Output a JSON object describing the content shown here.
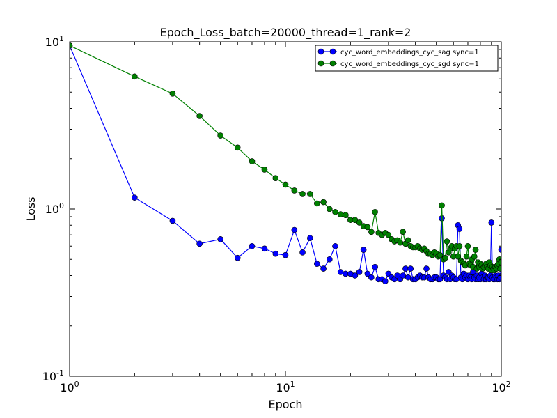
{
  "chart_data": {
    "type": "line",
    "title": "Epoch_Loss_batch=20000_thread=1_rank=2",
    "xlabel": "Epoch",
    "ylabel": "Loss",
    "xscale": "log",
    "yscale": "log",
    "xlim": [
      1,
      100
    ],
    "ylim": [
      0.1,
      10
    ],
    "grid": false,
    "legend_position": "top-right",
    "x_ticks": [
      {
        "value": 1,
        "base": "10",
        "exp": "0"
      },
      {
        "value": 10,
        "base": "10",
        "exp": "1"
      },
      {
        "value": 100,
        "base": "10",
        "exp": "2"
      }
    ],
    "y_ticks": [
      {
        "value": 0.1,
        "base": "10",
        "exp": "-1"
      },
      {
        "value": 1,
        "base": "10",
        "exp": "0"
      },
      {
        "value": 10,
        "base": "10",
        "exp": "1"
      }
    ],
    "series": [
      {
        "name": "cyc_word_embeddings_cyc_sag sync=1",
        "color": "#0000ff",
        "x": [
          1,
          2,
          3,
          4,
          5,
          6,
          7,
          8,
          9,
          10,
          11,
          12,
          13,
          14,
          15,
          16,
          17,
          18,
          19,
          20,
          21,
          22,
          23,
          24,
          25,
          26,
          27,
          28,
          29,
          30,
          31,
          32,
          33,
          34,
          35,
          36,
          37,
          38,
          39,
          40,
          41,
          42,
          43,
          44,
          45,
          46,
          47,
          48,
          49,
          50,
          51,
          52,
          53,
          54,
          55,
          56,
          57,
          58,
          59,
          60,
          61,
          62,
          63,
          64,
          65,
          66,
          67,
          68,
          69,
          70,
          71,
          72,
          73,
          74,
          75,
          76,
          77,
          78,
          79,
          80,
          81,
          82,
          83,
          84,
          85,
          86,
          87,
          88,
          89,
          90,
          91,
          92,
          93,
          94,
          95,
          96,
          97,
          98,
          99,
          100
        ],
        "y": [
          9.5,
          1.17,
          0.85,
          0.62,
          0.66,
          0.51,
          0.6,
          0.58,
          0.54,
          0.53,
          0.75,
          0.55,
          0.67,
          0.47,
          0.44,
          0.5,
          0.6,
          0.42,
          0.41,
          0.41,
          0.4,
          0.42,
          0.57,
          0.41,
          0.39,
          0.45,
          0.38,
          0.38,
          0.37,
          0.41,
          0.39,
          0.38,
          0.4,
          0.38,
          0.4,
          0.44,
          0.39,
          0.44,
          0.38,
          0.38,
          0.39,
          0.4,
          0.39,
          0.39,
          0.44,
          0.39,
          0.38,
          0.38,
          0.39,
          0.39,
          0.38,
          0.38,
          0.88,
          0.4,
          0.39,
          0.38,
          0.42,
          0.38,
          0.4,
          0.39,
          0.38,
          0.38,
          0.8,
          0.76,
          0.39,
          0.38,
          0.41,
          0.39,
          0.4,
          0.38,
          0.4,
          0.39,
          0.38,
          0.42,
          0.39,
          0.38,
          0.4,
          0.38,
          0.39,
          0.38,
          0.41,
          0.39,
          0.38,
          0.4,
          0.38,
          0.39,
          0.39,
          0.38,
          0.4,
          0.83,
          0.39,
          0.38,
          0.38,
          0.4,
          0.39,
          0.38,
          0.4,
          0.38,
          0.39,
          0.57
        ]
      },
      {
        "name": "cyc_word_embeddings_cyc_sgd sync=1",
        "color": "#008000",
        "x": [
          1,
          2,
          3,
          4,
          5,
          6,
          7,
          8,
          9,
          10,
          11,
          12,
          13,
          14,
          15,
          16,
          17,
          18,
          19,
          20,
          21,
          22,
          23,
          24,
          25,
          26,
          27,
          28,
          29,
          30,
          31,
          32,
          33,
          34,
          35,
          36,
          37,
          38,
          39,
          40,
          41,
          42,
          43,
          44,
          45,
          46,
          47,
          48,
          49,
          50,
          51,
          52,
          53,
          54,
          55,
          56,
          57,
          58,
          59,
          60,
          61,
          62,
          63,
          64,
          65,
          66,
          67,
          68,
          69,
          70,
          71,
          72,
          73,
          74,
          75,
          76,
          77,
          78,
          79,
          80,
          81,
          82,
          83,
          84,
          85,
          86,
          87,
          88,
          89,
          90,
          91,
          92,
          93,
          94,
          95,
          96,
          97,
          98,
          99,
          100
        ],
        "y": [
          9.5,
          6.2,
          4.9,
          3.6,
          2.75,
          2.33,
          1.93,
          1.72,
          1.53,
          1.4,
          1.29,
          1.23,
          1.23,
          1.08,
          1.1,
          1.0,
          0.96,
          0.93,
          0.92,
          0.86,
          0.86,
          0.83,
          0.79,
          0.78,
          0.73,
          0.96,
          0.72,
          0.7,
          0.72,
          0.7,
          0.66,
          0.64,
          0.65,
          0.63,
          0.73,
          0.62,
          0.65,
          0.6,
          0.59,
          0.59,
          0.6,
          0.58,
          0.57,
          0.58,
          0.56,
          0.54,
          0.54,
          0.53,
          0.55,
          0.54,
          0.52,
          0.53,
          1.05,
          0.5,
          0.51,
          0.64,
          0.55,
          0.58,
          0.6,
          0.52,
          0.58,
          0.6,
          0.52,
          0.6,
          0.49,
          0.48,
          0.47,
          0.46,
          0.52,
          0.6,
          0.47,
          0.46,
          0.5,
          0.45,
          0.52,
          0.57,
          0.44,
          0.48,
          0.45,
          0.47,
          0.46,
          0.44,
          0.45,
          0.46,
          0.47,
          0.45,
          0.44,
          0.48,
          0.46,
          0.43,
          0.45,
          0.44,
          0.43,
          0.45,
          0.44,
          0.46,
          0.47,
          0.5,
          0.44,
          0.48
        ]
      }
    ]
  }
}
